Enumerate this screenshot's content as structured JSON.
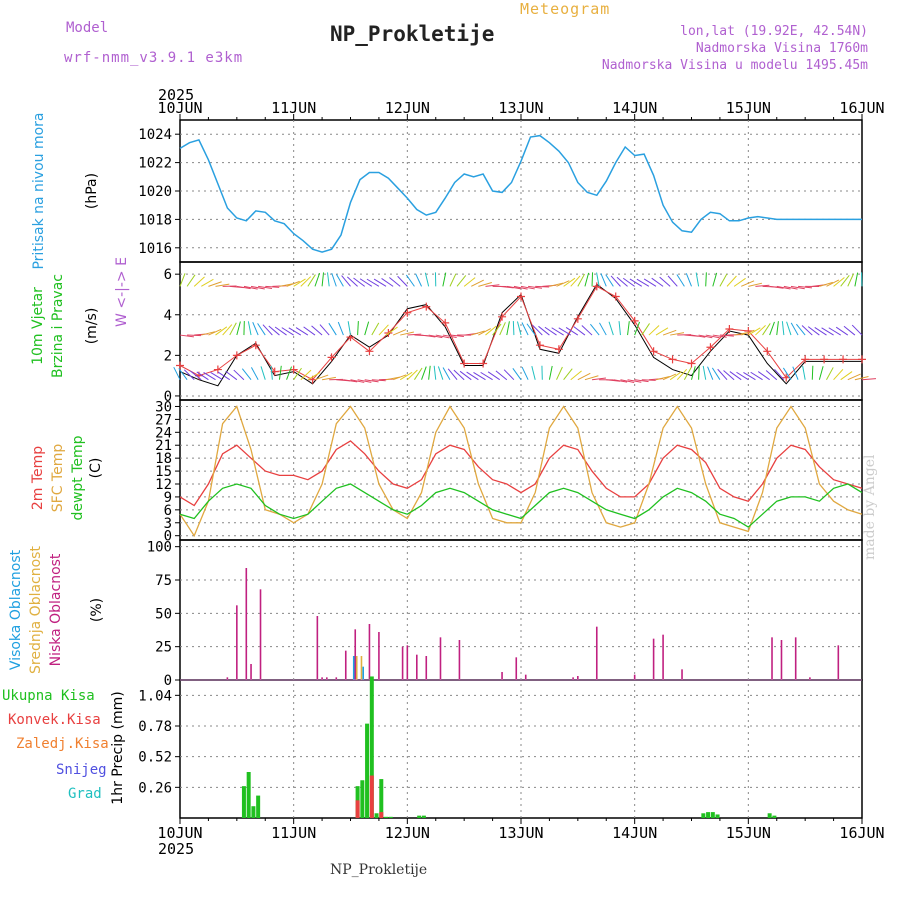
{
  "header": {
    "model_label": "Model",
    "model_name": "wrf-nmm_v3.9.1 e3km",
    "title": "NP_Prokletije",
    "subtitle": "Meteogram",
    "location": "lon,lat (19.92E, 42.54N)",
    "altitude": "Nadmorska Visina 1760m",
    "model_altitude": "Nadmorska Visina u modelu 1495.45m"
  },
  "footer": {
    "station": "NP_Prokletije",
    "credit": "made by Angel"
  },
  "time_axis": {
    "year": "2025",
    "ticks": [
      "10JUN",
      "11JUN",
      "12JUN",
      "13JUN",
      "14JUN",
      "15JUN",
      "16JUN"
    ]
  },
  "colors": {
    "pressure": "#2aa0e0",
    "temp2m": "#e84040",
    "sfc": "#e0a840",
    "dew": "#20c020",
    "high": "#20a0e0",
    "mid": "#e0b040",
    "low": "#c02080",
    "precip": "#20c020",
    "conv": "#e84040",
    "obs": "#000000",
    "wind": "#e84040"
  },
  "chart_data": [
    {
      "type": "line",
      "id": "pressure",
      "ylabel": "Pritisak na nivou mora",
      "unit": "(hPa)",
      "ylim": [
        1015,
        1025
      ],
      "yticks": [
        1016,
        1018,
        1020,
        1022,
        1024
      ],
      "x_range_hours": [
        0,
        144
      ],
      "series": [
        {
          "name": "Pressure",
          "x": [
            0,
            2,
            4,
            6,
            8,
            10,
            12,
            14,
            16,
            18,
            20,
            22,
            24,
            26,
            28,
            30,
            32,
            34,
            36,
            38,
            40,
            42,
            44,
            46,
            48,
            50,
            52,
            54,
            56,
            58,
            60,
            62,
            64,
            66,
            68,
            70,
            72,
            74,
            76,
            78,
            80,
            82,
            84,
            86,
            88,
            90,
            92,
            94,
            96,
            98,
            100,
            102,
            104,
            106,
            108,
            110,
            112,
            114,
            116,
            118,
            120,
            122,
            124,
            126,
            128,
            130,
            132,
            134,
            136,
            138,
            140,
            142,
            144
          ],
          "values": [
            1023,
            1023.4,
            1023.6,
            1022.2,
            1020.5,
            1018.8,
            1018.1,
            1017.9,
            1018.6,
            1018.5,
            1017.9,
            1017.7,
            1017.0,
            1016.5,
            1015.9,
            1015.7,
            1015.9,
            1016.9,
            1019.2,
            1020.8,
            1021.3,
            1021.3,
            1020.9,
            1020.2,
            1019.5,
            1018.7,
            1018.3,
            1018.5,
            1019.5,
            1020.6,
            1021.2,
            1021.0,
            1021.2,
            1020.0,
            1019.9,
            1020.6,
            1022.1,
            1023.8,
            1023.9,
            1023.4,
            1022.8,
            1022.0,
            1020.6,
            1019.9,
            1019.7,
            1020.7,
            1022.0,
            1023.1,
            1022.5,
            1022.6,
            1021.1,
            1019.0,
            1017.8,
            1017.2,
            1017.1,
            1018.0,
            1018.5,
            1018.4,
            1017.9,
            1017.9,
            1018.1,
            1018.2,
            1018.1,
            1018.0,
            1018.0,
            1018.0,
            1018.0,
            1018.0,
            1018.0,
            1018.0,
            1018.0,
            1018.0,
            1018.0
          ]
        }
      ]
    },
    {
      "type": "line",
      "id": "wind",
      "ylabel": "10m Vjetar",
      "ylabel2": "Brzina i Pravac",
      "unit": "(m/s)",
      "compass": "W <-|-> E",
      "ylim": [
        -0.2,
        6.6
      ],
      "yticks": [
        0,
        2,
        4,
        6
      ],
      "series": [
        {
          "name": "Wind speed (model)",
          "x": [
            0,
            4,
            8,
            12,
            16,
            20,
            24,
            28,
            32,
            36,
            40,
            44,
            48,
            52,
            56,
            60,
            64,
            68,
            72,
            76,
            80,
            84,
            88,
            92,
            96,
            100,
            104,
            108,
            112,
            116,
            120,
            124,
            128,
            132,
            136,
            140,
            144
          ],
          "values": [
            1.5,
            1.0,
            1.3,
            2.0,
            2.5,
            1.2,
            1.3,
            0.8,
            1.9,
            2.9,
            2.2,
            3.1,
            4.1,
            4.4,
            3.6,
            1.6,
            1.6,
            3.9,
            4.9,
            2.5,
            2.3,
            3.8,
            5.4,
            4.9,
            3.7,
            2.2,
            1.8,
            1.6,
            2.4,
            3.3,
            3.2,
            2.2,
            0.9,
            1.8,
            1.8,
            1.8,
            1.8
          ]
        },
        {
          "name": "Wind speed (obs)",
          "x": [
            0,
            4,
            8,
            12,
            16,
            20,
            24,
            28,
            32,
            36,
            40,
            44,
            48,
            52,
            56,
            60,
            64,
            68,
            72,
            76,
            80,
            84,
            88,
            92,
            96,
            100,
            104,
            108,
            112,
            116,
            120,
            124,
            128,
            132,
            136,
            140,
            144
          ],
          "values": [
            1.2,
            0.8,
            0.5,
            2.0,
            2.6,
            1.0,
            1.2,
            0.6,
            1.7,
            3.0,
            2.4,
            3.0,
            4.3,
            4.5,
            3.4,
            1.5,
            1.5,
            4.1,
            5.0,
            2.3,
            2.1,
            3.9,
            5.5,
            4.8,
            3.5,
            1.9,
            1.3,
            1.0,
            2.2,
            3.2,
            3.0,
            1.6,
            0.6,
            1.7,
            1.7,
            1.7,
            1.7
          ]
        }
      ]
    },
    {
      "type": "line",
      "id": "temperature",
      "ylabel": "2m Temp",
      "ylabel2": "SFC Temp",
      "ylabel3": "dewpt Temp",
      "unit": "(C)",
      "ylim": [
        -1,
        31.5
      ],
      "yticks": [
        0,
        3,
        6,
        9,
        12,
        15,
        18,
        21,
        24,
        27,
        30
      ],
      "series": [
        {
          "name": "2m Temp",
          "x": [
            0,
            3,
            6,
            9,
            12,
            15,
            18,
            21,
            24,
            27,
            30,
            33,
            36,
            39,
            42,
            45,
            48,
            51,
            54,
            57,
            60,
            63,
            66,
            69,
            72,
            75,
            78,
            81,
            84,
            87,
            90,
            93,
            96,
            99,
            102,
            105,
            108,
            111,
            114,
            117,
            120,
            123,
            126,
            129,
            132,
            135,
            138,
            141,
            144
          ],
          "values": [
            9,
            7,
            12,
            19,
            21,
            18,
            15,
            14,
            14,
            13,
            15,
            20,
            22,
            19,
            15,
            12,
            11,
            13,
            19,
            21,
            20,
            16,
            13,
            12,
            10,
            12,
            18,
            21,
            20,
            15,
            11,
            9,
            9,
            12,
            18,
            21,
            20,
            17,
            11,
            9,
            8,
            12,
            18,
            21,
            20,
            16,
            13,
            12,
            11
          ]
        },
        {
          "name": "SFC Temp",
          "x": [
            0,
            3,
            6,
            9,
            12,
            15,
            18,
            21,
            24,
            27,
            30,
            33,
            36,
            39,
            42,
            45,
            48,
            51,
            54,
            57,
            60,
            63,
            66,
            69,
            72,
            75,
            78,
            81,
            84,
            87,
            90,
            93,
            96,
            99,
            102,
            105,
            108,
            111,
            114,
            117,
            120,
            123,
            126,
            129,
            132,
            135,
            138,
            141,
            144
          ],
          "values": [
            5,
            0,
            8,
            26,
            30,
            20,
            6,
            5,
            3,
            5,
            12,
            26,
            30,
            25,
            12,
            6,
            4,
            10,
            24,
            30,
            25,
            12,
            4,
            3,
            3,
            10,
            25,
            30,
            25,
            10,
            3,
            2,
            3,
            12,
            25,
            30,
            25,
            12,
            3,
            2,
            1,
            10,
            25,
            30,
            25,
            12,
            8,
            6,
            5
          ]
        },
        {
          "name": "dewpt Temp",
          "x": [
            0,
            3,
            6,
            9,
            12,
            15,
            18,
            21,
            24,
            27,
            30,
            33,
            36,
            39,
            42,
            45,
            48,
            51,
            54,
            57,
            60,
            63,
            66,
            69,
            72,
            75,
            78,
            81,
            84,
            87,
            90,
            93,
            96,
            99,
            102,
            105,
            108,
            111,
            114,
            117,
            120,
            123,
            126,
            129,
            132,
            135,
            138,
            141,
            144
          ],
          "values": [
            5,
            4,
            8,
            11,
            12,
            11,
            7,
            5,
            4,
            5,
            8,
            11,
            12,
            10,
            8,
            6,
            5,
            7,
            10,
            11,
            10,
            8,
            6,
            5,
            4,
            7,
            10,
            11,
            10,
            8,
            6,
            5,
            4,
            6,
            9,
            11,
            10,
            8,
            5,
            4,
            2,
            5,
            8,
            9,
            9,
            8,
            11,
            12,
            10
          ]
        }
      ]
    },
    {
      "type": "bar",
      "id": "clouds",
      "ylabel": "Visoka Oblacnost",
      "ylabel2": "Srednja Oblacnost",
      "ylabel3": "Niska Oblacnost",
      "unit": "(%)",
      "ylim": [
        0,
        105
      ],
      "yticks": [
        0,
        25,
        50,
        75,
        100
      ],
      "series": [
        {
          "name": "Niska Oblacnost",
          "x": [
            10,
            12,
            14,
            15,
            17,
            29,
            30,
            31,
            33,
            35,
            37,
            40,
            42,
            47,
            48,
            50,
            52,
            55,
            59,
            68,
            71,
            73,
            83,
            84,
            88,
            96,
            100,
            102,
            106,
            125,
            127,
            130,
            133,
            139
          ],
          "values": [
            2,
            56,
            84,
            12,
            68,
            48,
            2,
            2,
            2,
            22,
            38,
            42,
            36,
            25,
            26,
            19,
            18,
            32,
            30,
            6,
            17,
            4,
            2,
            3,
            40,
            4,
            31,
            34,
            8,
            32,
            30,
            32,
            2,
            26
          ]
        },
        {
          "name": "Srednja Oblacnost",
          "x": [
            37,
            38
          ],
          "values": [
            18,
            18
          ]
        },
        {
          "name": "Visoka Oblacnost",
          "x": [
            37,
            39
          ],
          "values": [
            18,
            10
          ]
        }
      ]
    },
    {
      "type": "bar",
      "id": "precip",
      "ylabel": "1hr Precip (mm)",
      "unit": "(mm)",
      "ylim": [
        0,
        1.17
      ],
      "yticks": [
        0.26,
        0.52,
        0.78,
        1.04
      ],
      "legend": [
        "Ukupna Kisa",
        "Konvek.Kisa",
        "Zaledj.Kisa",
        "Snijeg",
        "Grad"
      ],
      "series": [
        {
          "name": "Ukupna Kisa",
          "x": [
            13.5,
            14.5,
            15.5,
            16.5,
            37.5,
            38.5,
            39.5,
            40.5,
            41.5,
            42.5,
            43.5,
            44.5,
            50.5,
            51.5,
            110.5,
            111.5,
            112.5,
            113.5,
            124.5,
            125.5
          ],
          "values": [
            0.27,
            0.39,
            0.1,
            0.19,
            0.27,
            0.32,
            0.8,
            1.2,
            0.04,
            0.33,
            0.01,
            0.01,
            0.02,
            0.02,
            0.04,
            0.05,
            0.05,
            0.03,
            0.04,
            0.02
          ]
        },
        {
          "name": "Konvek.Kisa",
          "x": [
            37.5,
            40.5,
            42.5
          ],
          "values": [
            0.15,
            0.36,
            0.05
          ]
        }
      ]
    }
  ]
}
